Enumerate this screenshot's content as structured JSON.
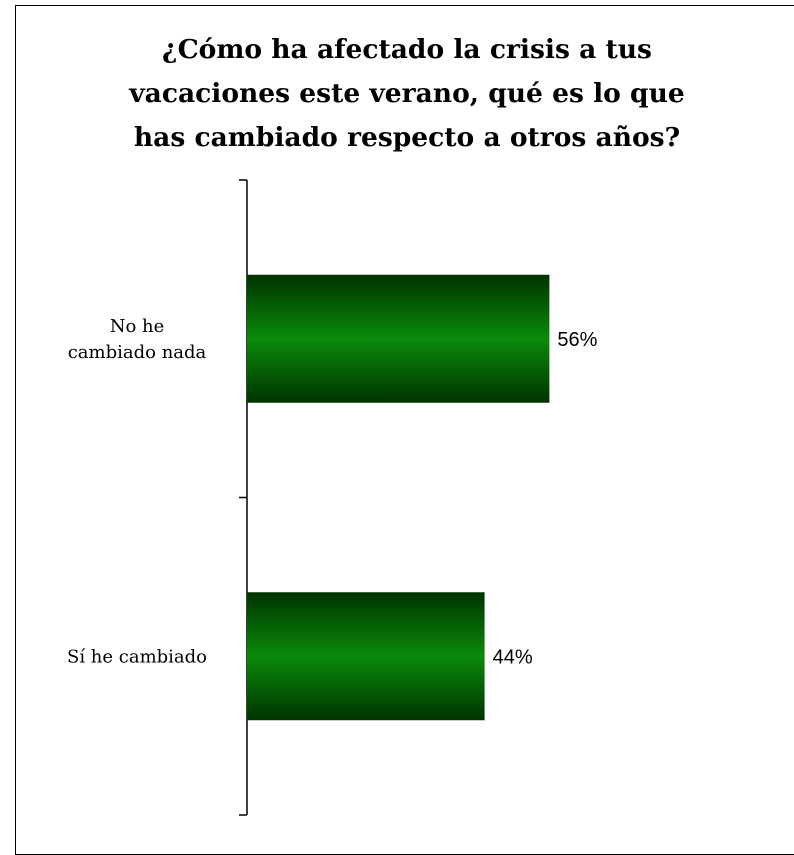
{
  "chart_data": {
    "type": "bar",
    "orientation": "horizontal",
    "title_lines": [
      "¿Cómo ha afectado la crisis a tus",
      "vacaciones este verano, qué es lo que",
      "has cambiado respecto a otros años?"
    ],
    "categories": [
      [
        "No he",
        "cambiado nada"
      ],
      [
        "Sí he cambiado"
      ]
    ],
    "values": [
      56,
      44
    ],
    "value_labels": [
      "56%",
      "44%"
    ],
    "xlim": [
      0,
      100
    ],
    "grid": false,
    "legend": "none",
    "colors": {
      "bar_center": "#0a8a0a",
      "bar_edge": "#003300",
      "axis": "#000000"
    }
  }
}
